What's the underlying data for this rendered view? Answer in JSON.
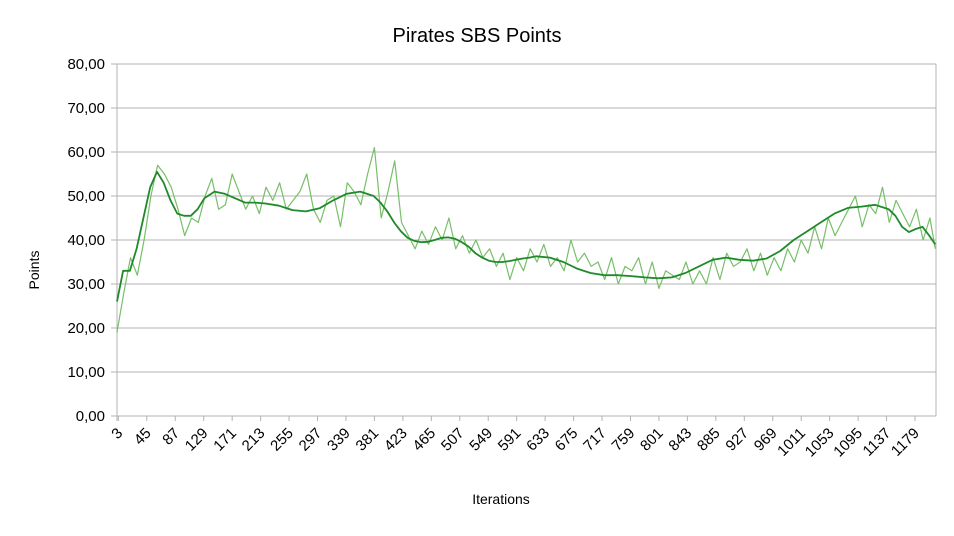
{
  "chart_data": {
    "type": "line",
    "title": "Pirates SBS Points",
    "xlabel": "Iterations",
    "ylabel": "Points",
    "ylim": [
      0,
      80
    ],
    "yticks": [
      "0,00",
      "10,00",
      "20,00",
      "30,00",
      "40,00",
      "50,00",
      "60,00",
      "70,00",
      "80,00"
    ],
    "xlim": [
      1,
      1210
    ],
    "xticks": [
      3,
      45,
      87,
      129,
      171,
      213,
      255,
      297,
      339,
      381,
      423,
      465,
      507,
      549,
      591,
      633,
      675,
      717,
      759,
      801,
      843,
      885,
      927,
      969,
      1011,
      1053,
      1095,
      1137,
      1179
    ],
    "grid": "horizontal",
    "legend": "none",
    "colors": {
      "raw": "#77bf68",
      "trend": "#1f8a2a",
      "grid": "#b3b3b3",
      "axis": "#b3b3b3"
    },
    "series": [
      {
        "role": "raw",
        "x": [
          1,
          11,
          21,
          31,
          41,
          51,
          61,
          71,
          81,
          91,
          101,
          111,
          121,
          131,
          141,
          151,
          161,
          171,
          181,
          191,
          201,
          211,
          221,
          231,
          241,
          251,
          261,
          271,
          281,
          291,
          301,
          311,
          321,
          331,
          341,
          351,
          361,
          371,
          381,
          391,
          401,
          411,
          421,
          431,
          441,
          451,
          461,
          471,
          481,
          491,
          501,
          511,
          521,
          531,
          541,
          551,
          561,
          571,
          581,
          591,
          601,
          611,
          621,
          631,
          641,
          651,
          661,
          671,
          681,
          691,
          701,
          711,
          721,
          731,
          741,
          751,
          761,
          771,
          781,
          791,
          801,
          811,
          821,
          831,
          841,
          851,
          861,
          871,
          881,
          891,
          901,
          911,
          921,
          931,
          941,
          951,
          961,
          971,
          981,
          991,
          1001,
          1011,
          1021,
          1031,
          1041,
          1051,
          1061,
          1071,
          1081,
          1091,
          1101,
          1111,
          1121,
          1131,
          1141,
          1151,
          1161,
          1171,
          1181,
          1191,
          1201,
          1209
        ],
        "y": [
          19,
          28,
          36,
          32,
          40,
          50,
          57,
          55,
          52,
          47,
          41,
          45,
          44,
          50,
          54,
          47,
          48,
          55,
          51,
          47,
          50,
          46,
          52,
          49,
          53,
          47,
          49,
          51,
          55,
          47,
          44,
          49,
          50,
          43,
          53,
          51,
          48,
          55,
          61,
          45,
          51,
          58,
          44,
          41,
          38,
          42,
          39,
          43,
          40,
          45,
          38,
          41,
          37,
          40,
          36,
          38,
          34,
          37,
          31,
          36,
          33,
          38,
          35,
          39,
          34,
          36,
          33,
          40,
          35,
          37,
          34,
          35,
          31,
          36,
          30,
          34,
          33,
          36,
          30,
          35,
          29,
          33,
          32,
          31,
          35,
          30,
          33,
          30,
          36,
          31,
          37,
          34,
          35,
          38,
          33,
          37,
          32,
          36,
          33,
          38,
          35,
          40,
          37,
          43,
          38,
          45,
          41,
          44,
          47,
          50,
          43,
          48,
          46,
          52,
          44,
          49,
          46,
          43,
          47,
          40,
          45,
          38
        ]
      },
      {
        "role": "trend",
        "x": [
          1,
          10,
          20,
          30,
          40,
          50,
          60,
          70,
          80,
          90,
          100,
          110,
          120,
          130,
          145,
          160,
          175,
          190,
          205,
          220,
          240,
          260,
          280,
          300,
          320,
          340,
          360,
          380,
          390,
          400,
          410,
          420,
          430,
          440,
          450,
          460,
          470,
          480,
          490,
          500,
          510,
          520,
          530,
          540,
          550,
          560,
          570,
          580,
          590,
          600,
          610,
          620,
          640,
          660,
          680,
          700,
          720,
          740,
          760,
          780,
          800,
          820,
          840,
          860,
          880,
          900,
          920,
          940,
          960,
          980,
          1000,
          1020,
          1040,
          1060,
          1080,
          1100,
          1120,
          1130,
          1140,
          1150,
          1160,
          1170,
          1180,
          1190,
          1200,
          1209
        ],
        "y": [
          26,
          33,
          33,
          38,
          45,
          52,
          55.5,
          53,
          49,
          46,
          45.5,
          45.5,
          47,
          49.5,
          51,
          50.5,
          49.5,
          48.5,
          48.5,
          48.3,
          47.8,
          46.8,
          46.5,
          47.2,
          49,
          50.5,
          51,
          50,
          48.5,
          46.5,
          44,
          42,
          40.5,
          39.8,
          39.5,
          39.6,
          40,
          40.5,
          40.6,
          40.3,
          39.5,
          38.5,
          37,
          36,
          35.3,
          35,
          35,
          35.2,
          35.5,
          35.8,
          36,
          36.3,
          36,
          35,
          33.5,
          32.5,
          32,
          32,
          31.8,
          31.5,
          31.3,
          31.5,
          32.5,
          34,
          35.5,
          36,
          35.5,
          35.3,
          35.8,
          37.5,
          40,
          42,
          44,
          46,
          47.3,
          47.6,
          48,
          47.5,
          47,
          45.5,
          43,
          41.8,
          42.5,
          43,
          41,
          39
        ]
      }
    ]
  }
}
